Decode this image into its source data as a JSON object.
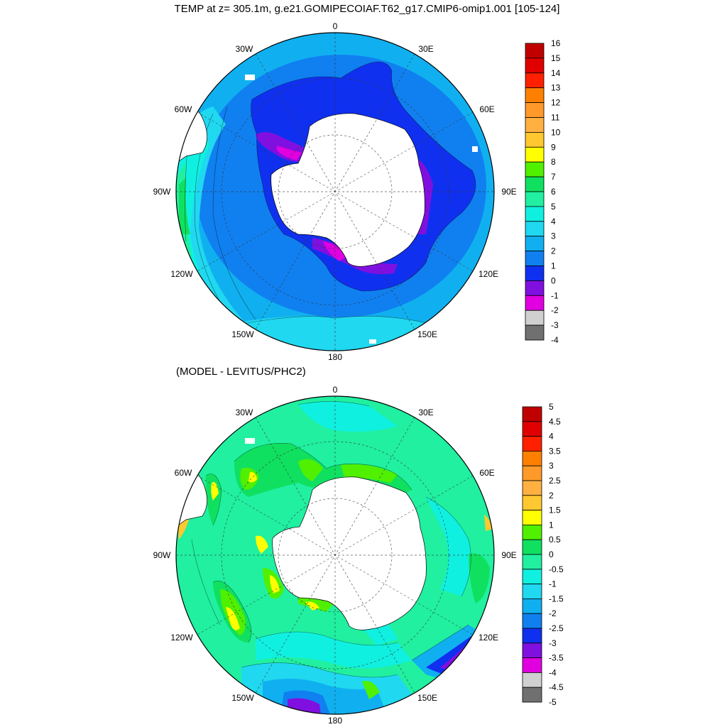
{
  "top_panel": {
    "title": "TEMP at z= 305.1m, g.e21.GOMIPECOIAF.T62_g17.CMIP6-omip1.001 [105-124]",
    "lon_labels": {
      "n": "0",
      "nne": "30E",
      "ene": "60E",
      "e": "90E",
      "ese": "120E",
      "sse": "150E",
      "s": "180",
      "ssw": "150W",
      "wsw": "120W",
      "w": "90W",
      "wnw": "60W",
      "nnw": "30W"
    },
    "colorbar": {
      "labels": [
        "16",
        "15",
        "14",
        "13",
        "12",
        "11",
        "10",
        "9",
        "8",
        "7",
        "6",
        "5",
        "4",
        "3",
        "2",
        "1",
        "0",
        "-1",
        "-2",
        "-3",
        "-4"
      ],
      "colors": [
        "#c00000",
        "#e00000",
        "#ff2000",
        "#ff8000",
        "#ff9a2a",
        "#ffb040",
        "#ffc830",
        "#ffff00",
        "#50f000",
        "#10e060",
        "#20f0a0",
        "#10f0e0",
        "#20d8f0",
        "#10b0f0",
        "#1080f0",
        "#1030f0",
        "#8010e0",
        "#e000e0",
        "#d0d0d0",
        "#707070"
      ]
    }
  },
  "bottom_panel": {
    "title": "(MODEL - LEVITUS/PHC2)",
    "lon_labels": {
      "n": "0",
      "nne": "30E",
      "ene": "60E",
      "e": "90E",
      "ese": "120E",
      "sse": "150E",
      "s": "180",
      "ssw": "150W",
      "wsw": "120W",
      "w": "90W",
      "wnw": "60W",
      "nnw": "30W"
    },
    "colorbar": {
      "labels": [
        "5",
        "4.5",
        "4",
        "3.5",
        "3",
        "2.5",
        "2",
        "1.5",
        "1",
        "0.5",
        "0",
        "-0.5",
        "-1",
        "-1.5",
        "-2",
        "-2.5",
        "-3",
        "-3.5",
        "-4",
        "-4.5",
        "-5"
      ],
      "colors": [
        "#c00000",
        "#e00000",
        "#ff2000",
        "#ff8000",
        "#ff9a2a",
        "#ffb040",
        "#ffc830",
        "#ffff00",
        "#50f000",
        "#10e060",
        "#20f0a0",
        "#10f0e0",
        "#20d8f0",
        "#10b0f0",
        "#1080f0",
        "#1030f0",
        "#8010e0",
        "#e000e0",
        "#d0d0d0",
        "#707070"
      ]
    }
  }
}
